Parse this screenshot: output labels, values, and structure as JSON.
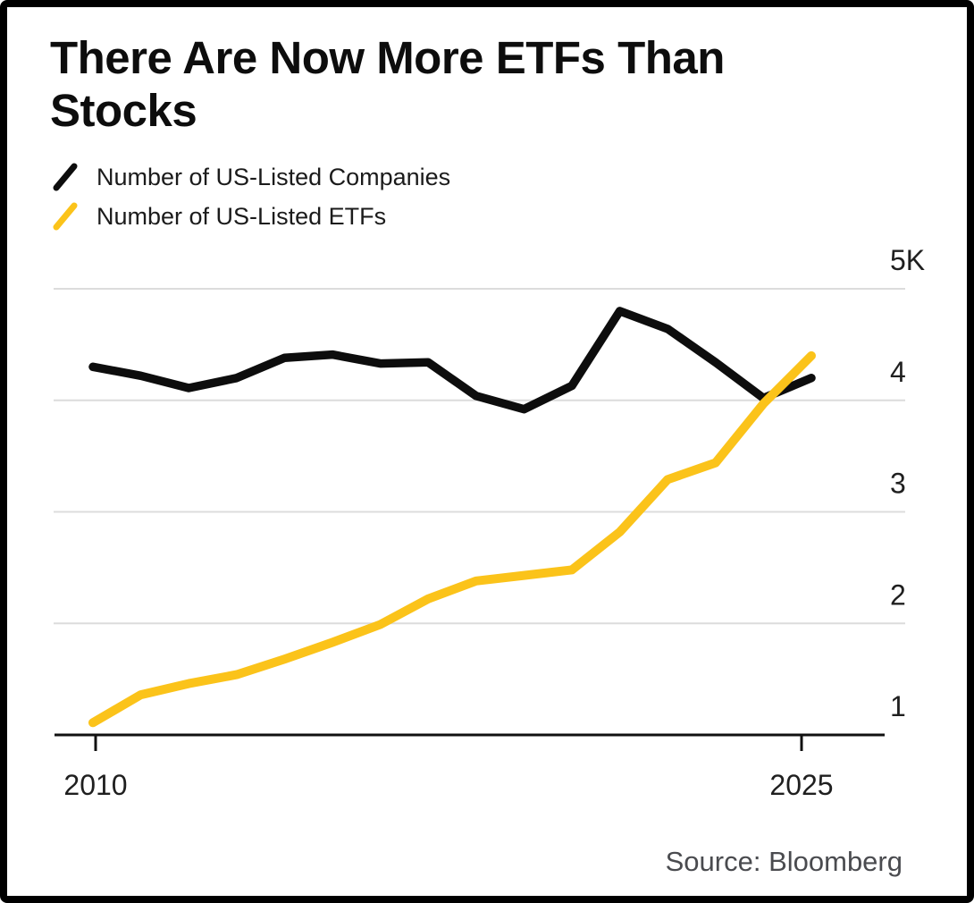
{
  "chart_data": {
    "type": "line",
    "title": "There Are Now More ETFs Than Stocks",
    "title_lines": [
      "There Are Now More ETFs Than",
      "Stocks"
    ],
    "source": "Source: Bloomberg",
    "x": [
      2010,
      2011,
      2012,
      2013,
      2014,
      2015,
      2016,
      2017,
      2018,
      2019,
      2020,
      2021,
      2022,
      2023,
      2024,
      2025
    ],
    "series": [
      {
        "name": "Number of US-Listed Companies",
        "color": "#0D0D0D",
        "values": [
          4300,
          4220,
          4110,
          4200,
          4380,
          4410,
          4330,
          4340,
          4040,
          3920,
          4130,
          4800,
          4640,
          4340,
          4020,
          4200
        ]
      },
      {
        "name": "Number of US-Listed ETFs",
        "color": "#FBC31A",
        "values": [
          1110,
          1360,
          1460,
          1540,
          1680,
          1830,
          1990,
          2220,
          2380,
          2430,
          2480,
          2820,
          3290,
          3440,
          3970,
          4400
        ]
      }
    ],
    "y_axis": {
      "range": [
        1000,
        5000
      ],
      "ticks": [
        {
          "label": "5K",
          "value": 5000
        },
        {
          "label": "4",
          "value": 4000
        },
        {
          "label": "3",
          "value": 3000
        },
        {
          "label": "2",
          "value": 2000
        },
        {
          "label": "1",
          "value": 1000
        }
      ]
    },
    "x_axis": {
      "ticks": [
        {
          "label": "2010",
          "value": 2010
        },
        {
          "label": "2025",
          "value": 2025
        }
      ]
    },
    "grid": true,
    "legend_position": "top-left",
    "colors": {
      "grid": "#DCDCDC",
      "axis": "#111111",
      "tick_label": "#1F1F1F",
      "source_text": "#4A4B4F"
    }
  }
}
